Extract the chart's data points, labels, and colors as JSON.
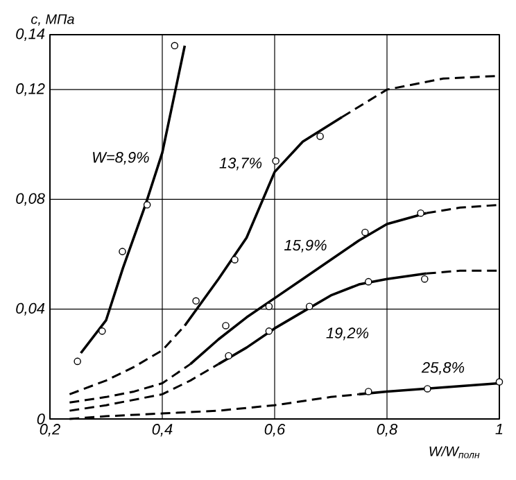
{
  "chart_data": {
    "type": "line",
    "xlabel": "W/W$_{полн}$",
    "ylabel": "c, МПа",
    "xlim": [
      0.2,
      1
    ],
    "ylim": [
      0,
      0.14
    ],
    "xticks": [
      {
        "value": 0.2,
        "label": "0,2"
      },
      {
        "value": 0.4,
        "label": "0,4"
      },
      {
        "value": 0.6,
        "label": "0,6"
      },
      {
        "value": 0.8,
        "label": "0,8"
      },
      1
    ],
    "yticks": [
      0,
      {
        "value": 0.04,
        "label": "0,04"
      },
      {
        "value": 0.08,
        "label": "0,08"
      },
      {
        "value": 0.12,
        "label": "0,12"
      },
      {
        "value": 0.14,
        "label": "0,14"
      }
    ],
    "grid": true,
    "marker": "none",
    "series": [
      {
        "name": "W=8,9%",
        "color": "#000000",
        "line_style": "solid",
        "x": [
          0.255,
          0.3,
          0.33,
          0.37,
          0.4,
          0.44
        ],
        "values": [
          0.024,
          0.036,
          0.055,
          0.078,
          0.097,
          0.136
        ]
      },
      {
        "type": "scatter",
        "marker": "circle",
        "color": "#000000",
        "x": [
          0.249,
          0.293,
          0.329,
          0.373,
          0.422
        ],
        "values": [
          0.021,
          0.032,
          0.061,
          0.078,
          0.136
        ]
      },
      {
        "color": "#000000",
        "line_style": "dashed",
        "x": [
          0.235,
          0.3,
          0.35,
          0.4,
          0.44
        ],
        "values": [
          0.009,
          0.014,
          0.019,
          0.025,
          0.034
        ]
      },
      {
        "name": "13,7%",
        "color": "#000000",
        "line_style": "solid",
        "x": [
          0.44,
          0.5,
          0.55,
          0.6,
          0.65,
          0.72
        ],
        "values": [
          0.034,
          0.051,
          0.066,
          0.09,
          0.101,
          0.11
        ]
      },
      {
        "color": "#000000",
        "line_style": "dashed",
        "x": [
          0.72,
          0.8,
          0.9,
          1
        ],
        "values": [
          0.11,
          0.12,
          0.124,
          0.125
        ]
      },
      {
        "type": "scatter",
        "marker": "circle",
        "color": "#000000",
        "x": [
          0.46,
          0.529,
          0.602,
          0.681
        ],
        "values": [
          0.043,
          0.058,
          0.094,
          0.103
        ]
      },
      {
        "color": "#000000",
        "line_style": "dashed",
        "x": [
          0.235,
          0.3,
          0.35,
          0.4,
          0.45
        ],
        "values": [
          0.006,
          0.008,
          0.01,
          0.013,
          0.02
        ]
      },
      {
        "name": "15,9%",
        "color": "#000000",
        "line_style": "solid",
        "x": [
          0.45,
          0.5,
          0.55,
          0.6,
          0.65,
          0.7,
          0.75,
          0.8,
          0.87
        ],
        "values": [
          0.02,
          0.029,
          0.037,
          0.044,
          0.051,
          0.058,
          0.065,
          0.071,
          0.075
        ]
      },
      {
        "color": "#000000",
        "line_style": "dashed",
        "x": [
          0.87,
          0.93,
          1
        ],
        "values": [
          0.075,
          0.077,
          0.078
        ]
      },
      {
        "type": "scatter",
        "marker": "circle",
        "color": "#000000",
        "x": [
          0.513,
          0.59,
          0.761,
          0.86
        ],
        "values": [
          0.034,
          0.041,
          0.068,
          0.075
        ]
      },
      {
        "color": "#000000",
        "line_style": "dashed",
        "x": [
          0.235,
          0.3,
          0.35,
          0.4,
          0.45,
          0.5
        ],
        "values": [
          0.003,
          0.005,
          0.007,
          0.009,
          0.014,
          0.02
        ]
      },
      {
        "name": "19,2%",
        "color": "#000000",
        "line_style": "solid",
        "x": [
          0.5,
          0.55,
          0.6,
          0.65,
          0.7,
          0.75,
          0.8,
          0.87
        ],
        "values": [
          0.02,
          0.026,
          0.033,
          0.039,
          0.045,
          0.049,
          0.051,
          0.053
        ]
      },
      {
        "color": "#000000",
        "line_style": "dashed",
        "x": [
          0.87,
          0.93,
          1
        ],
        "values": [
          0.053,
          0.054,
          0.054
        ]
      },
      {
        "type": "scatter",
        "marker": "circle",
        "color": "#000000",
        "x": [
          0.518,
          0.59,
          0.662,
          0.767,
          0.867
        ],
        "values": [
          0.023,
          0.032,
          0.041,
          0.05,
          0.051
        ]
      },
      {
        "color": "#000000",
        "line_style": "dashed",
        "x": [
          0.235,
          0.3,
          0.4,
          0.5,
          0.6,
          0.7,
          0.75
        ],
        "values": [
          0,
          0.001,
          0.002,
          0.003,
          0.005,
          0.008,
          0.009
        ]
      },
      {
        "name": "25,8%",
        "color": "#000000",
        "line_style": "solid",
        "x": [
          0.75,
          0.8,
          0.9,
          1
        ],
        "values": [
          0.009,
          0.01,
          0.0115,
          0.013
        ]
      },
      {
        "type": "scatter",
        "marker": "circle",
        "color": "#000000",
        "x": [
          0.767,
          0.872,
          1
        ],
        "values": [
          0.01,
          0.011,
          0.0135
        ]
      }
    ]
  }
}
